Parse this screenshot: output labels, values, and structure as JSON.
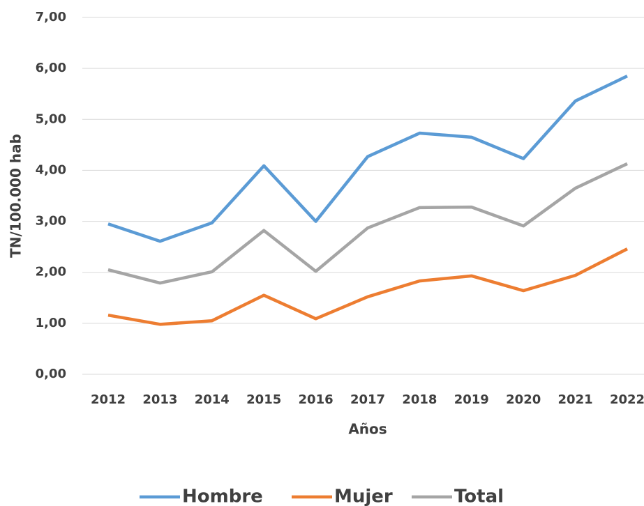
{
  "chart_data": {
    "type": "line",
    "x_label": "Años",
    "y_label": "TN/100.000 hab",
    "categories": [
      "2012",
      "2013",
      "2014",
      "2015",
      "2016",
      "2017",
      "2018",
      "2019",
      "2020",
      "2021",
      "2022"
    ],
    "series": [
      {
        "name": "Hombre",
        "color": "#5b9bd5",
        "values": [
          2.95,
          2.61,
          2.97,
          4.09,
          3.0,
          4.27,
          4.73,
          4.65,
          4.23,
          5.36,
          5.85
        ]
      },
      {
        "name": "Mujer",
        "color": "#ed7d31",
        "values": [
          1.16,
          0.98,
          1.05,
          1.55,
          1.09,
          1.52,
          1.83,
          1.93,
          1.64,
          1.94,
          2.46
        ]
      },
      {
        "name": "Total",
        "color": "#a5a5a5",
        "values": [
          2.05,
          1.79,
          2.01,
          2.82,
          2.02,
          2.87,
          3.27,
          3.28,
          2.91,
          3.65,
          4.13
        ]
      }
    ],
    "ylim": [
      0,
      7
    ],
    "yticks": [
      {
        "value": 0,
        "label": "0,00"
      },
      {
        "value": 1,
        "label": "1,00"
      },
      {
        "value": 2,
        "label": "2,00"
      },
      {
        "value": 3,
        "label": "3,00"
      },
      {
        "value": 4,
        "label": "4,00"
      },
      {
        "value": 5,
        "label": "5,00"
      },
      {
        "value": 6,
        "label": "6,00"
      },
      {
        "value": 7,
        "label": "7,00"
      }
    ],
    "grid": true,
    "legend": "bottom"
  }
}
